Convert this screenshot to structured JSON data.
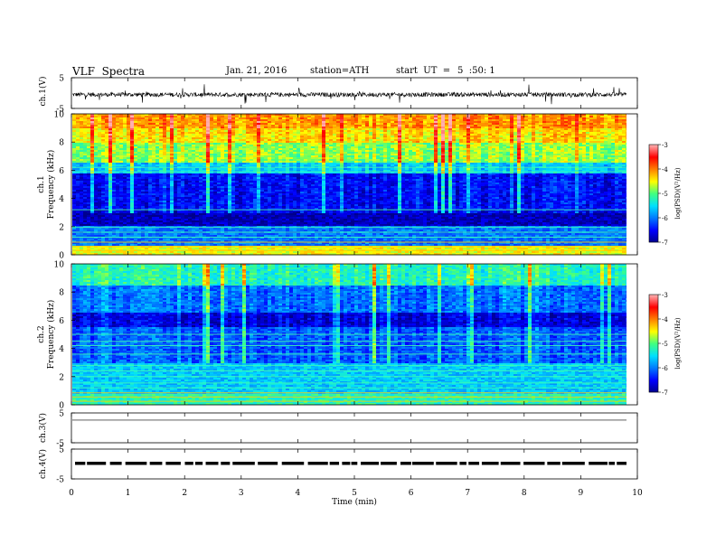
{
  "header": {
    "title": "VLF  Spectra",
    "date": "Jan. 21, 2016",
    "station": "station=ATH",
    "start_label": "start  UT  =",
    "start_time": "5  :50: 1"
  },
  "colorbar": {
    "label": "log(PSD)(V²/Hz)",
    "ticks": [
      "-3",
      "-4",
      "-5",
      "-6",
      "-7"
    ]
  },
  "colors": {
    "spectrogram_scale": [
      "#00008b",
      "#0000ff",
      "#0078ff",
      "#00e0ff",
      "#40ff80",
      "#ffff00",
      "#ff8000",
      "#ff0000",
      "#ffb0b0"
    ]
  },
  "chart_data": [
    {
      "type": "line",
      "name": "ch1-waveform",
      "ylabel": "ch.1(V)",
      "ylim": [
        -5,
        5
      ],
      "yticks": [
        "5",
        "-5"
      ],
      "xlim": [
        0,
        10
      ],
      "note_signal": "noise around about -0.5 V with impulsive spikes"
    },
    {
      "type": "heatmap",
      "name": "ch1-spectrogram",
      "ylabel": "ch.1",
      "ylabel2": "Frequency  (kHz)",
      "ylim": [
        0,
        10
      ],
      "yticks": [
        "0",
        "2",
        "4",
        "6",
        "8",
        "10"
      ],
      "xlim": [
        0,
        9.8
      ],
      "bands_khz": [
        {
          "from": 0.0,
          "to": 0.6,
          "level": -4.5
        },
        {
          "from": 0.6,
          "to": 2.0,
          "level": -6.0
        },
        {
          "from": 2.0,
          "to": 3.2,
          "level": -6.8
        },
        {
          "from": 3.2,
          "to": 5.8,
          "level": -6.7
        },
        {
          "from": 5.8,
          "to": 6.6,
          "level": -5.8
        },
        {
          "from": 6.6,
          "to": 8.0,
          "level": -5.0
        },
        {
          "from": 8.0,
          "to": 9.0,
          "level": -4.6
        },
        {
          "from": 9.0,
          "to": 10.0,
          "level": -4.3
        }
      ],
      "colorbar_range": [
        -7,
        -3
      ]
    },
    {
      "type": "heatmap",
      "name": "ch2-spectrogram",
      "ylabel": "ch.2",
      "ylabel2": "Frequency  (kHz)",
      "ylim": [
        0,
        10
      ],
      "yticks": [
        "0",
        "2",
        "4",
        "6",
        "8",
        "10"
      ],
      "xlim": [
        0,
        9.8
      ],
      "bands_khz": [
        {
          "from": 0.0,
          "to": 0.8,
          "level": -5.2
        },
        {
          "from": 0.8,
          "to": 3.0,
          "level": -5.6
        },
        {
          "from": 3.0,
          "to": 5.5,
          "level": -6.3
        },
        {
          "from": 5.5,
          "to": 6.5,
          "level": -6.8
        },
        {
          "from": 6.5,
          "to": 8.5,
          "level": -6.2
        },
        {
          "from": 8.5,
          "to": 10.0,
          "level": -5.4
        }
      ],
      "colorbar_range": [
        -7,
        -3
      ]
    },
    {
      "type": "line",
      "name": "ch3-waveform",
      "ylabel": "ch.3(V)",
      "ylim": [
        -5,
        5
      ],
      "yticks": [
        "5",
        "-5"
      ],
      "xlim": [
        0,
        10
      ]
    },
    {
      "type": "line",
      "name": "ch4-waveform",
      "ylabel": "ch.4(V)",
      "ylim": [
        -5,
        5
      ],
      "yticks": [
        "5",
        "-5"
      ],
      "xlim": [
        0,
        10
      ]
    },
    {
      "type": "axis",
      "name": "time-axis",
      "xlabel": "Time  (min)",
      "xlim": [
        0,
        10
      ],
      "xticks": [
        "0",
        "1",
        "2",
        "3",
        "4",
        "5",
        "6",
        "7",
        "8",
        "9",
        "10"
      ]
    }
  ]
}
